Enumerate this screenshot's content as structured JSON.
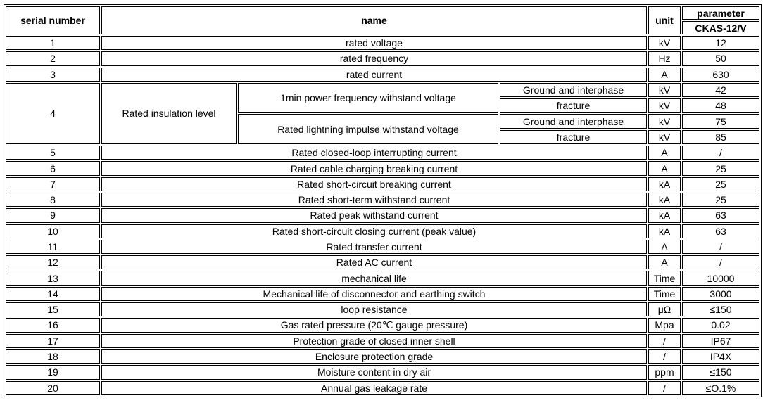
{
  "header": {
    "serial": "serial number",
    "name": "name",
    "unit": "unit",
    "parameter": "parameter",
    "model": "CKAS-12/V"
  },
  "rows_before": [
    {
      "no": "1",
      "name": "rated voltage",
      "unit": "kV",
      "value": "12"
    },
    {
      "no": "2",
      "name": "rated frequency",
      "unit": "Hz",
      "value": "50"
    },
    {
      "no": "3",
      "name": "rated current",
      "unit": "A",
      "value": "630"
    }
  ],
  "insulation": {
    "no": "4",
    "name": "Rated insulation level",
    "groups": [
      {
        "name": "1min power frequency withstand voltage",
        "items": [
          {
            "name": "Ground and interphase",
            "unit": "kV",
            "value": "42"
          },
          {
            "name": "fracture",
            "unit": "kV",
            "value": "48"
          }
        ]
      },
      {
        "name": "Rated lightning impulse withstand voltage",
        "items": [
          {
            "name": "Ground and interphase",
            "unit": "kV",
            "value": "75"
          },
          {
            "name": "fracture",
            "unit": "kV",
            "value": "85"
          }
        ]
      }
    ]
  },
  "rows_after": [
    {
      "no": "5",
      "name": "Rated closed-loop interrupting current",
      "unit": "A",
      "value": "/"
    },
    {
      "no": "6",
      "name": "Rated cable charging breaking current",
      "unit": "A",
      "value": "25"
    },
    {
      "no": "7",
      "name": "Rated short-circuit breaking current",
      "unit": "kA",
      "value": "25"
    },
    {
      "no": "8",
      "name": "Rated short-term withstand current",
      "unit": "kA",
      "value": "25"
    },
    {
      "no": "9",
      "name": "Rated peak withstand current",
      "unit": "kA",
      "value": "63"
    },
    {
      "no": "10",
      "name": "Rated short-circuit closing current (peak value)",
      "unit": "kA",
      "value": "63"
    },
    {
      "no": "11",
      "name": "Rated transfer current",
      "unit": "A",
      "value": "/"
    },
    {
      "no": "12",
      "name": "Rated AC current",
      "unit": "A",
      "value": "/"
    },
    {
      "no": "13",
      "name": "mechanical life",
      "unit": "Time",
      "value": "10000"
    },
    {
      "no": "14",
      "name": "Mechanical life of disconnector and earthing switch",
      "unit": "Time",
      "value": "3000"
    },
    {
      "no": "15",
      "name": "loop resistance",
      "unit": "μΩ",
      "value": "≤150"
    },
    {
      "no": "16",
      "name": "Gas rated pressure (20℃ gauge pressure)",
      "unit": "Mpa",
      "value": "0.02"
    },
    {
      "no": "17",
      "name": "Protection grade of closed inner shell",
      "unit": "/",
      "value": "IP67"
    },
    {
      "no": "18",
      "name": "Enclosure protection grade",
      "unit": "/",
      "value": "IP4X"
    },
    {
      "no": "19",
      "name": "Moisture content in dry air",
      "unit": "ppm",
      "value": "≤150"
    },
    {
      "no": "20",
      "name": "Annual gas leakage rate",
      "unit": "/",
      "value": "≤O.1%"
    }
  ]
}
